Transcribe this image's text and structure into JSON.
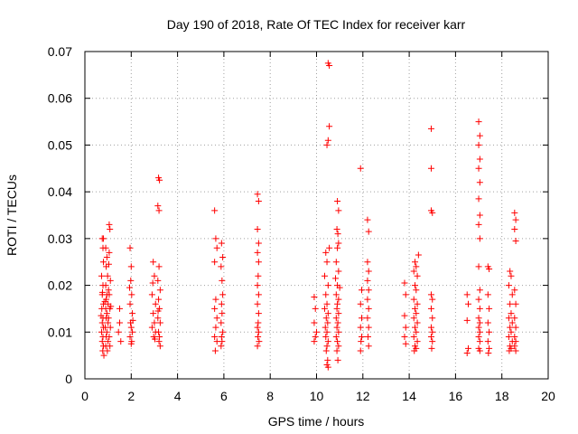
{
  "chart_data": {
    "type": "scatter",
    "title": "Day 190 of 2018, Rate Of TEC Index for receiver karr",
    "xlabel": "GPS time / hours",
    "ylabel": "ROTI / TECUs",
    "xlim": [
      0,
      20
    ],
    "ylim": [
      0,
      0.07
    ],
    "xticks": [
      "0",
      "2",
      "4",
      "6",
      "8",
      "10",
      "12",
      "14",
      "16",
      "18",
      "20"
    ],
    "yticks": [
      "0",
      "0.01",
      "0.02",
      "0.03",
      "0.04",
      "0.05",
      "0.06",
      "0.07"
    ],
    "grid": true,
    "marker": "+",
    "color": "#ff0000",
    "series": [
      {
        "name": "ROTI",
        "points": [
          [
            0.75,
            0.03
          ],
          [
            0.78,
            0.028
          ],
          [
            0.8,
            0.025
          ],
          [
            0.72,
            0.022
          ],
          [
            0.78,
            0.02
          ],
          [
            0.75,
            0.018
          ],
          [
            0.8,
            0.016
          ],
          [
            0.73,
            0.015
          ],
          [
            0.78,
            0.013
          ],
          [
            0.75,
            0.012
          ],
          [
            0.8,
            0.011
          ],
          [
            0.72,
            0.01
          ],
          [
            0.78,
            0.009
          ],
          [
            0.75,
            0.008
          ],
          [
            0.8,
            0.007
          ],
          [
            0.77,
            0.006
          ],
          [
            0.82,
            0.005
          ],
          [
            0.7,
            0.0135
          ],
          [
            0.76,
            0.0185
          ],
          [
            0.8,
            0.03
          ],
          [
            0.9,
            0.028
          ],
          [
            0.95,
            0.026
          ],
          [
            0.92,
            0.024
          ],
          [
            0.98,
            0.022
          ],
          [
            0.9,
            0.02
          ],
          [
            0.95,
            0.018
          ],
          [
            0.92,
            0.017
          ],
          [
            1.0,
            0.016
          ],
          [
            0.9,
            0.015
          ],
          [
            0.95,
            0.014
          ],
          [
            0.92,
            0.013
          ],
          [
            1.0,
            0.012
          ],
          [
            0.88,
            0.011
          ],
          [
            0.95,
            0.01
          ],
          [
            0.92,
            0.009
          ],
          [
            1.0,
            0.008
          ],
          [
            0.9,
            0.007
          ],
          [
            0.97,
            0.006
          ],
          [
            1.02,
            0.019
          ],
          [
            0.86,
            0.0165
          ],
          [
            1.05,
            0.033
          ],
          [
            1.08,
            0.032
          ],
          [
            1.05,
            0.027
          ],
          [
            1.1,
            0.021
          ],
          [
            1.05,
            0.018
          ],
          [
            1.08,
            0.015
          ],
          [
            1.02,
            0.013
          ],
          [
            1.1,
            0.011
          ],
          [
            1.05,
            0.009
          ],
          [
            1.08,
            0.007
          ],
          [
            1.12,
            0.0155
          ],
          [
            1.03,
            0.0245
          ],
          [
            1.5,
            0.015
          ],
          [
            1.5,
            0.012
          ],
          [
            1.45,
            0.01
          ],
          [
            1.55,
            0.008
          ],
          [
            1.95,
            0.028
          ],
          [
            2.0,
            0.024
          ],
          [
            1.98,
            0.021
          ],
          [
            2.02,
            0.018
          ],
          [
            1.95,
            0.016
          ],
          [
            2.05,
            0.014
          ],
          [
            1.97,
            0.012
          ],
          [
            2.0,
            0.011
          ],
          [
            2.05,
            0.01
          ],
          [
            1.95,
            0.009
          ],
          [
            2.02,
            0.008
          ],
          [
            2.0,
            0.0075
          ],
          [
            1.93,
            0.0195
          ],
          [
            2.07,
            0.0125
          ],
          [
            2.95,
            0.025
          ],
          [
            3.0,
            0.022
          ],
          [
            2.9,
            0.018
          ],
          [
            3.05,
            0.016
          ],
          [
            2.95,
            0.014
          ],
          [
            3.0,
            0.012
          ],
          [
            2.9,
            0.011
          ],
          [
            3.05,
            0.01
          ],
          [
            2.97,
            0.009
          ],
          [
            3.02,
            0.0085
          ],
          [
            2.93,
            0.0205
          ],
          [
            3.18,
            0.043
          ],
          [
            3.22,
            0.0425
          ],
          [
            3.15,
            0.037
          ],
          [
            3.2,
            0.036
          ],
          [
            3.2,
            0.024
          ],
          [
            3.15,
            0.021
          ],
          [
            3.25,
            0.019
          ],
          [
            3.18,
            0.017
          ],
          [
            3.22,
            0.015
          ],
          [
            3.15,
            0.013
          ],
          [
            3.25,
            0.012
          ],
          [
            3.18,
            0.01
          ],
          [
            3.22,
            0.009
          ],
          [
            3.2,
            0.008
          ],
          [
            3.25,
            0.007
          ],
          [
            3.16,
            0.0145
          ],
          [
            5.6,
            0.036
          ],
          [
            5.65,
            0.03
          ],
          [
            5.7,
            0.028
          ],
          [
            5.6,
            0.025
          ],
          [
            5.65,
            0.017
          ],
          [
            5.6,
            0.015
          ],
          [
            5.7,
            0.013
          ],
          [
            5.65,
            0.011
          ],
          [
            5.6,
            0.009
          ],
          [
            5.7,
            0.008
          ],
          [
            5.63,
            0.006
          ],
          [
            5.9,
            0.029
          ],
          [
            5.95,
            0.026
          ],
          [
            5.88,
            0.024
          ],
          [
            5.92,
            0.021
          ],
          [
            5.95,
            0.018
          ],
          [
            5.9,
            0.016
          ],
          [
            5.92,
            0.014
          ],
          [
            5.88,
            0.012
          ],
          [
            5.95,
            0.01
          ],
          [
            5.9,
            0.009
          ],
          [
            5.92,
            0.008
          ],
          [
            5.88,
            0.007
          ],
          [
            7.45,
            0.0395
          ],
          [
            7.5,
            0.038
          ],
          [
            7.45,
            0.032
          ],
          [
            7.5,
            0.029
          ],
          [
            7.45,
            0.027
          ],
          [
            7.5,
            0.025
          ],
          [
            7.48,
            0.022
          ],
          [
            7.45,
            0.02
          ],
          [
            7.5,
            0.018
          ],
          [
            7.45,
            0.016
          ],
          [
            7.5,
            0.014
          ],
          [
            7.48,
            0.012
          ],
          [
            7.45,
            0.011
          ],
          [
            7.5,
            0.01
          ],
          [
            7.47,
            0.009
          ],
          [
            7.52,
            0.008
          ],
          [
            7.45,
            0.007
          ],
          [
            9.9,
            0.0175
          ],
          [
            9.95,
            0.015
          ],
          [
            9.9,
            0.012
          ],
          [
            10.0,
            0.01
          ],
          [
            9.95,
            0.009
          ],
          [
            9.9,
            0.008
          ],
          [
            10.4,
            0.027
          ],
          [
            10.45,
            0.025
          ],
          [
            10.35,
            0.022
          ],
          [
            10.5,
            0.02
          ],
          [
            10.4,
            0.018
          ],
          [
            10.45,
            0.016
          ],
          [
            10.35,
            0.015
          ],
          [
            10.5,
            0.014
          ],
          [
            10.42,
            0.013
          ],
          [
            10.48,
            0.012
          ],
          [
            10.38,
            0.011
          ],
          [
            10.45,
            0.01
          ],
          [
            10.4,
            0.009
          ],
          [
            10.5,
            0.008
          ],
          [
            10.45,
            0.007
          ],
          [
            10.42,
            0.006
          ],
          [
            10.48,
            0.004
          ],
          [
            10.45,
            0.003
          ],
          [
            10.5,
            0.0025
          ],
          [
            10.5,
            0.0675
          ],
          [
            10.55,
            0.067
          ],
          [
            10.55,
            0.054
          ],
          [
            10.5,
            0.051
          ],
          [
            10.45,
            0.05
          ],
          [
            10.55,
            0.028
          ],
          [
            10.9,
            0.038
          ],
          [
            10.95,
            0.036
          ],
          [
            10.88,
            0.032
          ],
          [
            10.92,
            0.031
          ],
          [
            10.95,
            0.029
          ],
          [
            10.9,
            0.028
          ],
          [
            10.85,
            0.025
          ],
          [
            10.95,
            0.023
          ],
          [
            10.9,
            0.02
          ],
          [
            10.85,
            0.018
          ],
          [
            10.95,
            0.017
          ],
          [
            10.9,
            0.016
          ],
          [
            10.88,
            0.015
          ],
          [
            10.95,
            0.014
          ],
          [
            10.85,
            0.013
          ],
          [
            10.92,
            0.012
          ],
          [
            10.88,
            0.011
          ],
          [
            10.95,
            0.01
          ],
          [
            10.85,
            0.009
          ],
          [
            10.9,
            0.008
          ],
          [
            10.95,
            0.007
          ],
          [
            10.88,
            0.006
          ],
          [
            10.92,
            0.004
          ],
          [
            11.0,
            0.0195
          ],
          [
            10.82,
            0.0215
          ],
          [
            11.9,
            0.045
          ],
          [
            11.95,
            0.019
          ],
          [
            11.9,
            0.016
          ],
          [
            11.95,
            0.013
          ],
          [
            11.9,
            0.011
          ],
          [
            11.95,
            0.009
          ],
          [
            11.92,
            0.008
          ],
          [
            11.9,
            0.006
          ],
          [
            12.2,
            0.034
          ],
          [
            12.25,
            0.0315
          ],
          [
            12.2,
            0.025
          ],
          [
            12.25,
            0.023
          ],
          [
            12.2,
            0.021
          ],
          [
            12.25,
            0.019
          ],
          [
            12.2,
            0.017
          ],
          [
            12.25,
            0.015
          ],
          [
            12.2,
            0.013
          ],
          [
            12.25,
            0.011
          ],
          [
            12.22,
            0.009
          ],
          [
            12.25,
            0.007
          ],
          [
            13.8,
            0.0205
          ],
          [
            13.85,
            0.018
          ],
          [
            13.8,
            0.0135
          ],
          [
            13.85,
            0.011
          ],
          [
            13.8,
            0.009
          ],
          [
            13.85,
            0.0075
          ],
          [
            14.25,
            0.025
          ],
          [
            14.3,
            0.024
          ],
          [
            14.2,
            0.023
          ],
          [
            14.35,
            0.022
          ],
          [
            14.25,
            0.02
          ],
          [
            14.3,
            0.019
          ],
          [
            14.2,
            0.017
          ],
          [
            14.35,
            0.016
          ],
          [
            14.25,
            0.015
          ],
          [
            14.3,
            0.014
          ],
          [
            14.2,
            0.013
          ],
          [
            14.35,
            0.012
          ],
          [
            14.25,
            0.011
          ],
          [
            14.3,
            0.01
          ],
          [
            14.2,
            0.009
          ],
          [
            14.35,
            0.008
          ],
          [
            14.25,
            0.007
          ],
          [
            14.3,
            0.0065
          ],
          [
            14.22,
            0.006
          ],
          [
            14.4,
            0.0265
          ],
          [
            14.95,
            0.0535
          ],
          [
            14.95,
            0.045
          ],
          [
            14.95,
            0.036
          ],
          [
            15.0,
            0.0355
          ],
          [
            14.95,
            0.018
          ],
          [
            15.0,
            0.017
          ],
          [
            14.95,
            0.015
          ],
          [
            15.0,
            0.013
          ],
          [
            14.95,
            0.011
          ],
          [
            15.0,
            0.01
          ],
          [
            14.95,
            0.009
          ],
          [
            15.0,
            0.008
          ],
          [
            14.97,
            0.0065
          ],
          [
            16.5,
            0.018
          ],
          [
            16.55,
            0.016
          ],
          [
            16.5,
            0.0125
          ],
          [
            16.55,
            0.0065
          ],
          [
            16.5,
            0.0055
          ],
          [
            17.0,
            0.055
          ],
          [
            17.05,
            0.052
          ],
          [
            17.0,
            0.05
          ],
          [
            17.05,
            0.047
          ],
          [
            17.0,
            0.045
          ],
          [
            17.05,
            0.042
          ],
          [
            17.0,
            0.0385
          ],
          [
            17.05,
            0.035
          ],
          [
            17.0,
            0.033
          ],
          [
            17.05,
            0.03
          ],
          [
            17.0,
            0.024
          ],
          [
            17.05,
            0.019
          ],
          [
            17.0,
            0.017
          ],
          [
            17.05,
            0.015
          ],
          [
            17.0,
            0.013
          ],
          [
            17.05,
            0.012
          ],
          [
            17.0,
            0.011
          ],
          [
            17.05,
            0.01
          ],
          [
            17.0,
            0.009
          ],
          [
            17.05,
            0.008
          ],
          [
            17.0,
            0.0065
          ],
          [
            17.05,
            0.006
          ],
          [
            17.4,
            0.024
          ],
          [
            17.45,
            0.0235
          ],
          [
            17.4,
            0.018
          ],
          [
            17.45,
            0.015
          ],
          [
            17.4,
            0.012
          ],
          [
            17.45,
            0.01
          ],
          [
            17.4,
            0.008
          ],
          [
            17.45,
            0.0065
          ],
          [
            17.42,
            0.0055
          ],
          [
            18.35,
            0.023
          ],
          [
            18.4,
            0.022
          ],
          [
            18.3,
            0.02
          ],
          [
            18.45,
            0.018
          ],
          [
            18.35,
            0.016
          ],
          [
            18.4,
            0.014
          ],
          [
            18.3,
            0.013
          ],
          [
            18.45,
            0.012
          ],
          [
            18.35,
            0.011
          ],
          [
            18.4,
            0.01
          ],
          [
            18.3,
            0.009
          ],
          [
            18.45,
            0.008
          ],
          [
            18.35,
            0.007
          ],
          [
            18.4,
            0.0065
          ],
          [
            18.32,
            0.006
          ],
          [
            18.55,
            0.0355
          ],
          [
            18.6,
            0.034
          ],
          [
            18.55,
            0.032
          ],
          [
            18.6,
            0.0295
          ],
          [
            18.55,
            0.019
          ],
          [
            18.6,
            0.016
          ],
          [
            18.55,
            0.013
          ],
          [
            18.6,
            0.011
          ],
          [
            18.55,
            0.009
          ],
          [
            18.6,
            0.008
          ],
          [
            18.55,
            0.007
          ],
          [
            18.6,
            0.006
          ]
        ]
      }
    ]
  }
}
